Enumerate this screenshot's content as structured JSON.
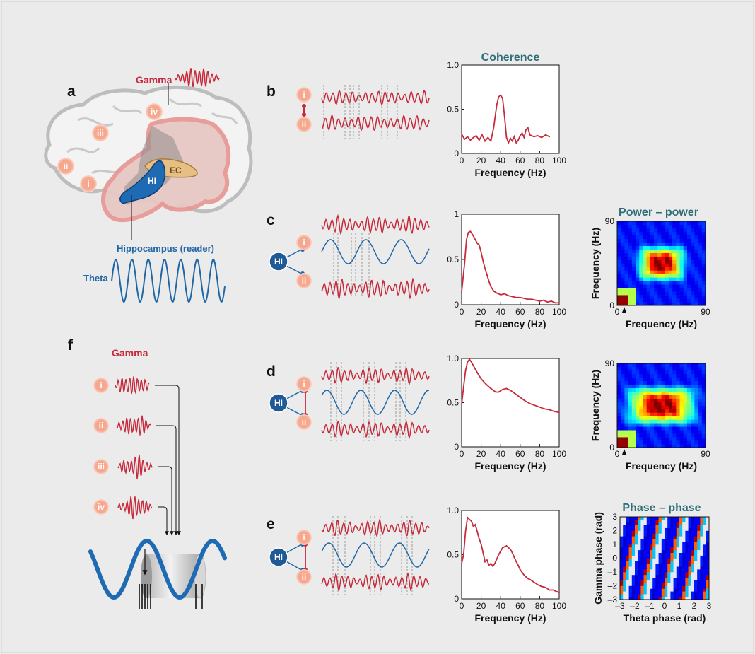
{
  "panel_labels": {
    "a": "a",
    "b": "b",
    "c": "c",
    "d": "d",
    "e": "e",
    "f": "f"
  },
  "brain": {
    "gamma_label": "Gamma",
    "theta_label": "Theta",
    "reader_label": "Hippocampus (reader)",
    "hi_label": "HI",
    "ec_label": "EC",
    "nodes": [
      "i",
      "ii",
      "iii",
      "iv"
    ]
  },
  "nodes": {
    "i": "i",
    "ii": "ii",
    "iii": "iii",
    "iv": "iv",
    "hi": "HI"
  },
  "panel_f": {
    "gamma_label": "Gamma",
    "nodes": [
      "i",
      "ii",
      "iii",
      "iv"
    ]
  },
  "colors": {
    "gamma_red": "#c62a3b",
    "theta_blue": "#2067a6",
    "title_teal": "#2e6e78",
    "node_orange": "#f08a6a"
  },
  "chart_data": [
    {
      "id": "b-coherence",
      "type": "line",
      "title": "Coherence",
      "xlabel": "Frequency (Hz)",
      "ylabel": "",
      "xlim": [
        0,
        100
      ],
      "ylim": [
        0,
        1
      ],
      "xticks": [
        "0",
        "20",
        "40",
        "60",
        "80",
        "100"
      ],
      "yticks": [
        "0",
        "0.5",
        "1.0"
      ],
      "x": [
        0,
        3,
        6,
        9,
        12,
        15,
        18,
        21,
        24,
        27,
        30,
        33,
        36,
        38,
        40,
        42,
        44,
        46,
        48,
        50,
        52,
        54,
        56,
        58,
        60,
        62,
        64,
        66,
        68,
        70,
        74,
        78,
        82,
        86,
        90
      ],
      "y": [
        0.22,
        0.16,
        0.19,
        0.15,
        0.18,
        0.2,
        0.15,
        0.21,
        0.14,
        0.18,
        0.14,
        0.3,
        0.55,
        0.64,
        0.66,
        0.62,
        0.42,
        0.18,
        0.12,
        0.17,
        0.14,
        0.19,
        0.12,
        0.15,
        0.2,
        0.23,
        0.18,
        0.27,
        0.29,
        0.21,
        0.19,
        0.2,
        0.18,
        0.21,
        0.19
      ]
    },
    {
      "id": "c-spectrum",
      "type": "line",
      "title": "",
      "xlabel": "Frequency (Hz)",
      "xlim": [
        0,
        100
      ],
      "ylim": [
        0,
        1
      ],
      "xticks": [
        "0",
        "20",
        "40",
        "60",
        "80",
        "100"
      ],
      "yticks": [
        "0",
        "0.5",
        "1"
      ],
      "x": [
        0,
        3,
        5,
        7,
        9,
        12,
        14,
        16,
        18,
        20,
        22,
        24,
        26,
        28,
        30,
        33,
        36,
        40,
        44,
        48,
        52,
        56,
        60,
        64,
        68,
        72,
        76,
        80,
        84,
        88,
        92,
        96,
        100
      ],
      "y": [
        0.14,
        0.45,
        0.72,
        0.8,
        0.81,
        0.76,
        0.72,
        0.68,
        0.66,
        0.58,
        0.48,
        0.4,
        0.33,
        0.26,
        0.2,
        0.15,
        0.13,
        0.11,
        0.12,
        0.1,
        0.09,
        0.08,
        0.08,
        0.07,
        0.06,
        0.06,
        0.05,
        0.04,
        0.05,
        0.03,
        0.04,
        0.02,
        0.02
      ]
    },
    {
      "id": "d-spectrum",
      "type": "line",
      "title": "",
      "xlabel": "Frequency (Hz)",
      "xlim": [
        0,
        100
      ],
      "ylim": [
        0,
        1
      ],
      "xticks": [
        "0",
        "20",
        "40",
        "60",
        "80",
        "100"
      ],
      "yticks": [
        "0",
        "0.5",
        "1.0"
      ],
      "x": [
        0,
        2,
        4,
        6,
        8,
        10,
        13,
        16,
        20,
        25,
        30,
        35,
        38,
        42,
        46,
        50,
        55,
        60,
        65,
        70,
        75,
        80,
        85,
        90,
        95,
        100
      ],
      "y": [
        0.48,
        0.68,
        0.86,
        0.96,
        0.99,
        0.96,
        0.9,
        0.84,
        0.77,
        0.71,
        0.66,
        0.62,
        0.62,
        0.65,
        0.66,
        0.64,
        0.6,
        0.56,
        0.52,
        0.49,
        0.47,
        0.45,
        0.43,
        0.42,
        0.4,
        0.39
      ]
    },
    {
      "id": "e-spectrum",
      "type": "line",
      "title": "",
      "xlabel": "Frequency (Hz)",
      "xlim": [
        0,
        100
      ],
      "ylim": [
        0,
        1
      ],
      "xticks": [
        "0",
        "20",
        "40",
        "60",
        "80",
        "100"
      ],
      "yticks": [
        "0",
        "0.5",
        "1.0"
      ],
      "x": [
        0,
        2,
        4,
        6,
        8,
        10,
        12,
        14,
        16,
        18,
        20,
        22,
        24,
        26,
        28,
        30,
        32,
        34,
        36,
        38,
        40,
        42,
        44,
        46,
        48,
        50,
        52,
        54,
        56,
        58,
        60,
        62,
        64,
        66,
        68,
        70,
        74,
        78,
        82,
        86,
        90,
        94,
        98,
        100
      ],
      "y": [
        0.4,
        0.5,
        0.76,
        0.92,
        0.9,
        0.88,
        0.82,
        0.84,
        0.76,
        0.68,
        0.62,
        0.52,
        0.42,
        0.44,
        0.38,
        0.4,
        0.37,
        0.4,
        0.45,
        0.5,
        0.54,
        0.58,
        0.59,
        0.6,
        0.58,
        0.56,
        0.52,
        0.47,
        0.42,
        0.38,
        0.33,
        0.3,
        0.27,
        0.25,
        0.23,
        0.22,
        0.19,
        0.16,
        0.14,
        0.13,
        0.1,
        0.1,
        0.08,
        0.07
      ]
    },
    {
      "id": "c-power-power",
      "type": "heatmap",
      "title": "Power – power",
      "xlabel": "Frequency (Hz)",
      "ylabel": "Frequency (Hz)",
      "xlim": [
        0,
        90
      ],
      "ylim": [
        0,
        90
      ],
      "xticks": [
        "0",
        "90"
      ],
      "yticks": [
        "0",
        "90"
      ]
    },
    {
      "id": "d-power-power",
      "type": "heatmap",
      "title": "",
      "xlabel": "Frequency (Hz)",
      "ylabel": "Frequency (Hz)",
      "xlim": [
        0,
        90
      ],
      "ylim": [
        0,
        90
      ],
      "xticks": [
        "0",
        "90"
      ],
      "yticks": [
        "0",
        "90"
      ]
    },
    {
      "id": "e-phase-phase",
      "type": "heatmap",
      "title": "Phase – phase",
      "xlabel": "Theta phase (rad)",
      "ylabel": "Gamma phase (rad)",
      "xlim": [
        -3,
        3
      ],
      "ylim": [
        -3,
        3
      ],
      "xticks": [
        "–3",
        "–2",
        "–1",
        "0",
        "1",
        "2",
        "3"
      ],
      "yticks": [
        "–3",
        "–2",
        "–1",
        "0",
        "1",
        "2",
        "3"
      ]
    }
  ]
}
